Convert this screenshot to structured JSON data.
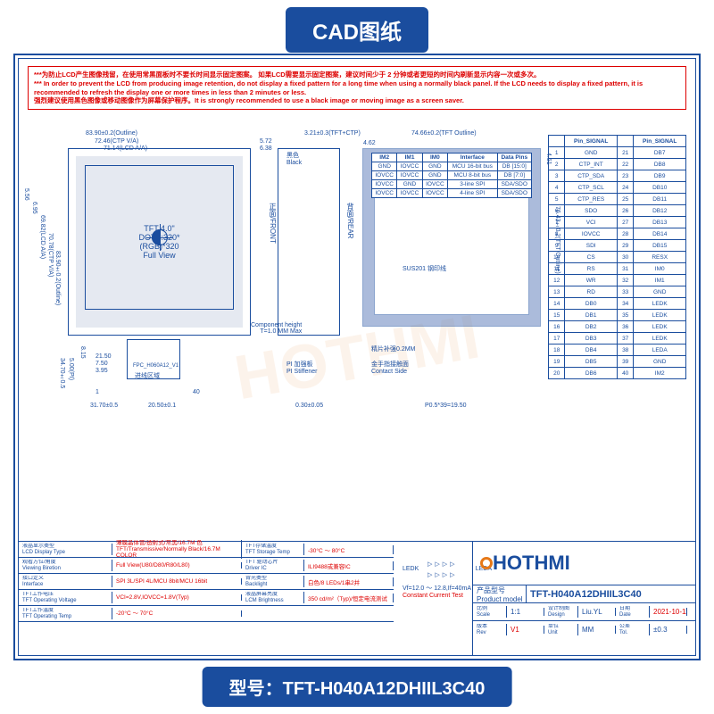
{
  "banners": {
    "top": "CAD图纸",
    "bottom": "型号：TFT-H040A12DHIIL3C40"
  },
  "warning": {
    "zh1": "***为防止LCD产生图像残留，在使用常黑面板时不要长时间显示固定图案。 如果LCD需要显示固定图案，建议时间少于 2 分钟或者更短的时间内刷新显示内容一次或多次。",
    "en1": "*** In order to prevent the LCD from producing image retention, do not display a fixed pattern for a long time when using a normally black panel. If the LCD needs to display a fixed pattern, it is recommended to refresh the display one or more times in less than 2 minutes or less.",
    "zh2": "强烈建议使用黑色图像或移动图像作为屏幕保护程序。It is strongly recommended to use a black image or moving image as a screen saver."
  },
  "dims": {
    "top1": "83.90±0.2(Outline)",
    "top2": "72.46(CTP V/A)",
    "top3": "71.14(LCD A/A)",
    "top4": "5.72",
    "top5": "6.38",
    "top6": "3.21±0.3(TFT+CTP)",
    "top7": "4.62",
    "top8": "74.66±0.2(TFT Outline)",
    "top9": "4.51",
    "l1": "5.56",
    "l2": "6.95",
    "l3": "69.82(LCD A/A)",
    "l4": "70.78(CTP V/A)",
    "l5": "83.90±0.2(Outline)",
    "l6": "76.43±0.2(TFT Outline)",
    "b1": "31.70±0.5",
    "b2": "20.50±0.1",
    "b3": "0.30±0.05",
    "b4": "P0.5*39=19.50",
    "bl1": "34.70±0.5",
    "bl2": "5.00(PI)",
    "bl3": "8.15",
    "bl4": "21.50",
    "bl5": "7.50",
    "bl6": "3.95"
  },
  "tft": {
    "l1": "TFT 4.0\"",
    "l2": "DOTS:320*(RGB)*320",
    "l3": "Full View"
  },
  "labels": {
    "black": "黑色\nBlack",
    "front": "正面/FRONT",
    "rear": "背面/REAR",
    "comp_h": "Component height\nT=1.0 MM Max",
    "pi": "PI 加强板\nPI Stiffener",
    "gap": "精片补强0.2MM",
    "contact": "金手指接触面\nContact Side",
    "write": "进线区域",
    "fpc": "FPC_H060A12_V1",
    "sus": "SUS201  钢印线"
  },
  "iface": {
    "headers": [
      "IM2",
      "IM1",
      "IM0",
      "Interface",
      "Data Pins"
    ],
    "rows": [
      [
        "GND",
        "IOVCC",
        "GND",
        "MCU 16-bit bus",
        "DB [15:0]"
      ],
      [
        "IOVCC",
        "IOVCC",
        "GND",
        "MCU 8-bit bus",
        "DB [7:0]"
      ],
      [
        "IOVCC",
        "GND",
        "IOVCC",
        "3-line SPI",
        "SDA/SDO"
      ],
      [
        "IOVCC",
        "IOVCC",
        "IOVCC",
        "4-line SPI",
        "SDA/SDO"
      ]
    ]
  },
  "pins": {
    "header": [
      "",
      "Pin_SIGNAL",
      "",
      "Pin_SIGNAL"
    ],
    "rows": [
      [
        "1",
        "GND",
        "21",
        "DB7"
      ],
      [
        "2",
        "CTP_INT",
        "22",
        "DB8"
      ],
      [
        "3",
        "CTP_SDA",
        "23",
        "DB9"
      ],
      [
        "4",
        "CTP_SCL",
        "24",
        "DB10"
      ],
      [
        "5",
        "CTP_RES",
        "25",
        "DB11"
      ],
      [
        "6",
        "SDO",
        "26",
        "DB12"
      ],
      [
        "7",
        "VCI",
        "27",
        "DB13"
      ],
      [
        "8",
        "IOVCC",
        "28",
        "DB14"
      ],
      [
        "9",
        "SDI",
        "29",
        "DB15"
      ],
      [
        "10",
        "CS",
        "30",
        "RESX"
      ],
      [
        "11",
        "RS",
        "31",
        "IM0"
      ],
      [
        "12",
        "WR",
        "32",
        "IM1"
      ],
      [
        "13",
        "RD",
        "33",
        "GND"
      ],
      [
        "14",
        "DB0",
        "34",
        "LEDK"
      ],
      [
        "15",
        "DB1",
        "35",
        "LEDK"
      ],
      [
        "16",
        "DB2",
        "36",
        "LEDK"
      ],
      [
        "17",
        "DB3",
        "37",
        "LEDK"
      ],
      [
        "18",
        "DB4",
        "38",
        "LEDA"
      ],
      [
        "19",
        "DB5",
        "39",
        "GND"
      ],
      [
        "20",
        "DB6",
        "40",
        "IM2"
      ]
    ]
  },
  "led": {
    "k": "LEDK",
    "a": "LEDA",
    "spec": "Vf=12.0 ～ 12.8,If=40mA",
    "test": "Constant Current Test"
  },
  "spec_left": [
    [
      "液晶显示类型\nLCD Display Type",
      "薄膜晶体管/透射式/常黑/16.7M 色\nTFT/Transmissive/Normally Black/16.7M COLOR"
    ],
    [
      "观看方位/角度\nViewing Biretion",
      "Full View(U80/D80/R80/L80)"
    ],
    [
      "接口定义\nInterface",
      "SPI 3L/SPI 4L/MCU 8bit/MCU 16bit"
    ],
    [
      "TFT工作电压\nTFT Operating Voltage",
      "VCI=2.8V,IOVCC=1.8V(Typ)"
    ],
    [
      "TFT工作温度\nTFT Operating Temp",
      "-20°C ～ 70°C"
    ]
  ],
  "spec_mid": [
    [
      "TFT存储温度\nTFT Storage Temp",
      "-30°C ～ 80°C"
    ],
    [
      "TFT 驱动芯片\nDriver IC",
      "ILI9488或兼容IC"
    ],
    [
      "背光类型\nBacklight",
      "白色/8 LEDs/1串2并"
    ],
    [
      "液晶屏幕亮度\nLCM Brightness",
      "350 cd/m²（Typ)/恒定电流测试"
    ]
  ],
  "title_block": {
    "logo": "HOTHMI",
    "prod_zh": "产品型号",
    "prod_en": "Product model",
    "model": "TFT-H040A12DHIIL3C40",
    "row2": [
      [
        "比例\nScale",
        "1:1"
      ],
      [
        "设计制图\nDesign",
        "Liu.YL"
      ],
      [
        "日期\nDate",
        "2021-10-11"
      ]
    ],
    "row3": [
      [
        "版本\nRev",
        "V1"
      ],
      [
        "单位\nUnit",
        "MM"
      ],
      [
        "公差\nTol.",
        "±0.3"
      ]
    ]
  },
  "colors": {
    "brand": "#1a4d9e",
    "accent": "#e67817",
    "warn": "#d00000"
  }
}
